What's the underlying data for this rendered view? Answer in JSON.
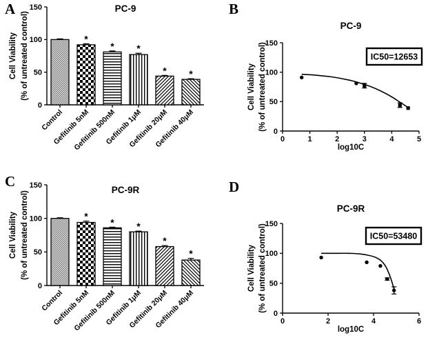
{
  "figure": {
    "background": "#ffffff",
    "ink_color": "#000000",
    "control_bar_gray": "#7d7d7d"
  },
  "chart_data": [
    {
      "panel": "A",
      "type": "bar",
      "title": "PC-9",
      "ylabel": [
        "Cell Viability",
        "(% of untreated control)"
      ],
      "ylim": [
        0,
        150
      ],
      "yticks": [
        0,
        50,
        100,
        150
      ],
      "categories": [
        "Control",
        "Gefitinib 5nM",
        "Gefitinib 500nM",
        "Gefitinib 1μM",
        "Gefitinib 20μM",
        "Gefitinib 40μM"
      ],
      "values": [
        100,
        92,
        81,
        77,
        44,
        39
      ],
      "errors": [
        1,
        1.5,
        1.5,
        2,
        1,
        1
      ],
      "significance": [
        "",
        "*",
        "*",
        "*",
        "*",
        "*"
      ],
      "bar_patterns": [
        "gray-fine-check",
        "checkerboard",
        "horizontal-lines",
        "vertical-lines",
        "diagonal-up",
        "diagonal-down"
      ],
      "grid": "off"
    },
    {
      "panel": "B",
      "type": "scatter",
      "title": "PC-9",
      "annotation": "IC50=12653",
      "xlabel": "log10C",
      "ylabel": [
        "Cell Viability",
        "(% of untreated control)"
      ],
      "xlim": [
        0,
        5
      ],
      "xticks": [
        0,
        1,
        2,
        3,
        4,
        5
      ],
      "ylim": [
        0,
        150
      ],
      "yticks": [
        0,
        50,
        100,
        150
      ],
      "points": {
        "x": [
          0.7,
          2.7,
          3.0,
          4.3,
          4.6
        ],
        "y": [
          91,
          81,
          77,
          44,
          39
        ],
        "yerr": [
          0,
          0,
          4,
          4,
          0
        ],
        "marker": [
          "circle",
          "circle",
          "square",
          "square",
          "square"
        ]
      },
      "curve": [
        [
          0.7,
          96.5
        ],
        [
          1.2,
          95
        ],
        [
          1.8,
          92
        ],
        [
          2.4,
          87
        ],
        [
          2.8,
          82
        ],
        [
          3.2,
          76
        ],
        [
          3.6,
          68
        ],
        [
          4.0,
          58
        ],
        [
          4.3,
          49
        ],
        [
          4.6,
          40
        ]
      ],
      "grid": "off"
    },
    {
      "panel": "C",
      "type": "bar",
      "title": "PC-9R",
      "ylabel": [
        "Cell Viability",
        "(% of untreated control)"
      ],
      "ylim": [
        0,
        150
      ],
      "yticks": [
        0,
        50,
        100,
        150
      ],
      "categories": [
        "Control",
        "Gefitinib 5nM",
        "Gefitinib 500nM",
        "Gefitinib 1μM",
        "Gefitinib 20μM",
        "Gefitinib 40μM"
      ],
      "values": [
        100,
        94,
        86,
        80,
        58,
        38
      ],
      "errors": [
        1,
        2,
        1,
        1,
        1.5,
        2.5
      ],
      "significance": [
        "",
        "*",
        "*",
        "*",
        "*",
        "*"
      ],
      "bar_patterns": [
        "gray-fine-check",
        "checkerboard",
        "horizontal-lines",
        "vertical-lines",
        "diagonal-up",
        "diagonal-down"
      ],
      "grid": "off"
    },
    {
      "panel": "D",
      "type": "scatter",
      "title": "PC-9R",
      "annotation": "IC50=53480",
      "xlabel": "log10C",
      "ylabel": [
        "Cell Viability",
        "(% of untreated control)"
      ],
      "xlim": [
        0,
        6
      ],
      "xticks": [
        0,
        2,
        4,
        6
      ],
      "ylim": [
        0,
        150
      ],
      "yticks": [
        0,
        50,
        100,
        150
      ],
      "points": {
        "x": [
          1.7,
          3.7,
          4.3,
          4.6,
          4.9
        ],
        "y": [
          93,
          85,
          79,
          57,
          38
        ],
        "yerr": [
          0,
          0,
          0,
          2,
          6
        ],
        "marker": [
          "circle",
          "circle",
          "circle",
          "circle",
          "circle"
        ]
      },
      "curve": [
        [
          1.7,
          100
        ],
        [
          2.3,
          100
        ],
        [
          2.9,
          100
        ],
        [
          3.4,
          99
        ],
        [
          3.8,
          96.5
        ],
        [
          4.1,
          93
        ],
        [
          4.35,
          87
        ],
        [
          4.55,
          77
        ],
        [
          4.72,
          62
        ],
        [
          4.85,
          47
        ],
        [
          4.93,
          36
        ]
      ],
      "grid": "off"
    }
  ]
}
